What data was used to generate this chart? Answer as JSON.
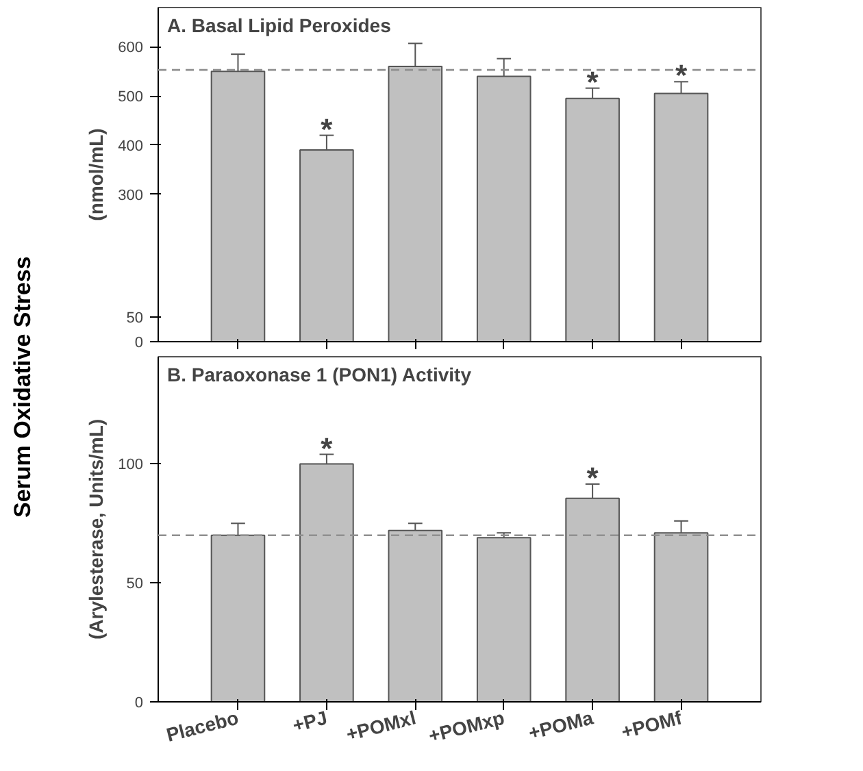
{
  "chart_data": [
    {
      "type": "bar",
      "title": "A. Basal Lipid Peroxides",
      "ylabel": "(nmol/mL)",
      "categories": [
        "Placebo",
        "+PJ",
        "+POMxl",
        "+POMxp",
        "+POMa",
        "+POMf"
      ],
      "values": [
        550,
        390,
        560,
        540,
        495,
        505
      ],
      "color": "#c0c0c0",
      "errors": [
        [
          550,
          585
        ],
        [
          390,
          420
        ],
        [
          560,
          607
        ],
        [
          540,
          576
        ],
        [
          495,
          516
        ],
        [
          505,
          529
        ]
      ],
      "ylim": [
        0,
        680
      ],
      "yticks": [
        0,
        50,
        300,
        400,
        500,
        600
      ],
      "tick_labels": "y",
      "grid": false,
      "ref_lines": [
        {
          "axis": "y",
          "value": 553,
          "color": "#909090",
          "line_style": "dashed"
        }
      ],
      "annotations": [
        "Serum Oxidative Stress",
        {
          "text": "*",
          "x": "+PJ",
          "y": 420
        },
        {
          "text": "*",
          "x": "+POMa",
          "y": 516
        },
        {
          "text": "*",
          "x": "+POMf",
          "y": 529
        }
      ]
    },
    {
      "type": "bar",
      "title": "B. Paraoxonase 1 (PON1) Activity",
      "ylabel": "(Arylesterase, Units/mL)",
      "categories": [
        "Placebo",
        "+PJ",
        "+POMxl",
        "+POMxp",
        "+POMa",
        "+POMf"
      ],
      "values": [
        70,
        100,
        72,
        69,
        85.5,
        71
      ],
      "color": "#c0c0c0",
      "errors": [
        [
          70,
          75
        ],
        [
          100,
          104
        ],
        [
          72,
          75
        ],
        [
          69,
          71
        ],
        [
          85.5,
          91.5
        ],
        [
          71,
          76
        ]
      ],
      "ylim": [
        0,
        145
      ],
      "yticks": [
        0,
        50,
        100
      ],
      "grid": false,
      "ref_lines": [
        {
          "axis": "y",
          "value": 70,
          "color": "#909090",
          "line_style": "dashed"
        }
      ],
      "annotations": [
        {
          "text": "*",
          "x": "+PJ",
          "y": 104
        },
        {
          "text": "*",
          "x": "+POMa",
          "y": 91.5
        }
      ]
    }
  ]
}
